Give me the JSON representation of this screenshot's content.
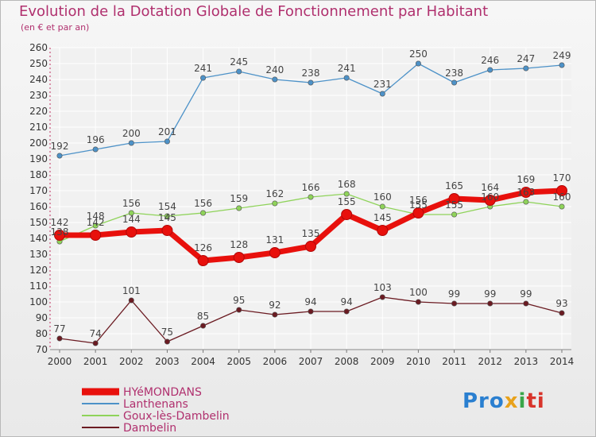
{
  "title": "Evolution de la Dotation Globale de Fonctionnement par Habitant",
  "subtitle": "(en € et par an)",
  "logo": {
    "p1": "Pro",
    "p2": "x",
    "p3": "i",
    "p4": "ti"
  },
  "chart_data": {
    "type": "line",
    "title": "Evolution de la Dotation Globale de Fonctionnement par Habitant",
    "ylabel": "(en € et par an)",
    "xlabel": "",
    "x": [
      "2000",
      "2001",
      "2002",
      "2003",
      "2004",
      "2005",
      "2006",
      "2007",
      "2008",
      "2009",
      "2010",
      "2011",
      "2012",
      "2013",
      "2014"
    ],
    "ylim": [
      70,
      260
    ],
    "yticks": [
      70,
      80,
      90,
      100,
      110,
      120,
      130,
      140,
      150,
      160,
      170,
      180,
      190,
      200,
      210,
      220,
      230,
      240,
      250,
      260
    ],
    "grid": true,
    "legend_position": "bottom-left",
    "series": [
      {
        "name": "HYéMONDANS",
        "color": "#e8100c",
        "values": [
          142,
          142,
          144,
          145,
          126,
          128,
          131,
          135,
          155,
          145,
          156,
          165,
          164,
          169,
          170
        ]
      },
      {
        "name": "Lanthenans",
        "color": "#4d92c8",
        "values": [
          192,
          196,
          200,
          201,
          241,
          245,
          240,
          238,
          241,
          231,
          250,
          238,
          246,
          247,
          249
        ]
      },
      {
        "name": "Goux-lès-Dambelin",
        "color": "#8fd35a",
        "values": [
          138,
          148,
          156,
          154,
          156,
          159,
          162,
          166,
          168,
          160,
          155,
          155,
          160,
          163,
          160
        ]
      },
      {
        "name": "Dambelin",
        "color": "#6b1b22",
        "values": [
          77,
          74,
          101,
          75,
          85,
          95,
          92,
          94,
          94,
          103,
          100,
          99,
          99,
          99,
          93
        ]
      }
    ]
  }
}
